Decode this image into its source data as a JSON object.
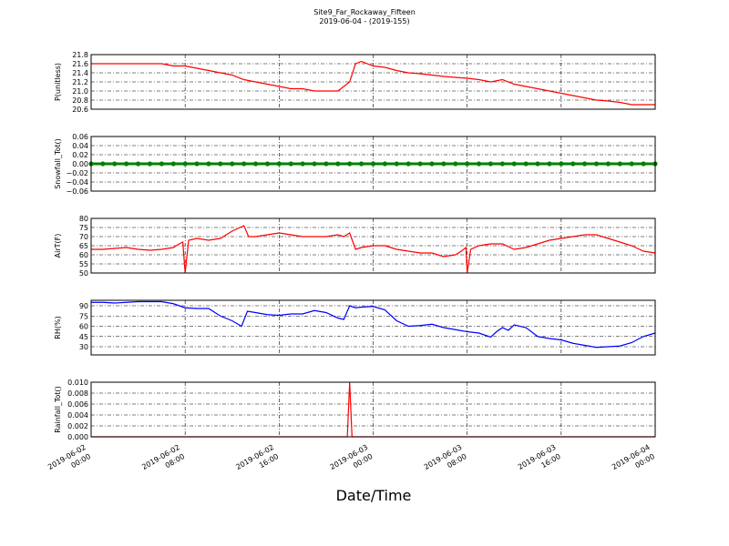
{
  "title": "Site9_Far_Rockaway_Fifteen",
  "subtitle": "2019-06-04 - (2019-155)",
  "xlabel": "Date/Time",
  "xlim": [
    "2019-06-02 00:00",
    "2019-06-04 00:00"
  ],
  "xticks": [
    {
      "value": "2019-06-02 00:00",
      "label": [
        "2019-06-02",
        "00:00"
      ]
    },
    {
      "value": "2019-06-02 08:00",
      "label": [
        "2019-06-02",
        "08:00"
      ]
    },
    {
      "value": "2019-06-02 16:00",
      "label": [
        "2019-06-02",
        "16:00"
      ]
    },
    {
      "value": "2019-06-03 00:00",
      "label": [
        "2019-06-03",
        "00:00"
      ]
    },
    {
      "value": "2019-06-03 08:00",
      "label": [
        "2019-06-03",
        "08:00"
      ]
    },
    {
      "value": "2019-06-03 16:00",
      "label": [
        "2019-06-03",
        "16:00"
      ]
    },
    {
      "value": "2019-06-04 00:00",
      "label": [
        "2019-06-04",
        "00:00"
      ]
    }
  ],
  "grid": true,
  "chart_data": [
    {
      "type": "line",
      "ylabel": "P(unitless)",
      "ylim": [
        20.6,
        21.8
      ],
      "yticks": [
        20.6,
        20.8,
        {
          "value": 21.0,
          "label": "21.0"
        },
        21.2,
        21.4,
        21.6,
        21.8
      ],
      "x": [
        "2019-06-02 00:00",
        "2019-06-02 01:00",
        "2019-06-02 02:00",
        "2019-06-02 03:00",
        "2019-06-02 04:00",
        "2019-06-02 05:00",
        "2019-06-02 06:00",
        "2019-06-02 07:00",
        "2019-06-02 08:00",
        "2019-06-02 09:00",
        "2019-06-02 10:00",
        "2019-06-02 11:00",
        "2019-06-02 12:00",
        "2019-06-02 13:00",
        "2019-06-02 14:00",
        "2019-06-02 15:00",
        "2019-06-02 16:00",
        "2019-06-02 17:00",
        "2019-06-02 18:00",
        "2019-06-02 19:00",
        "2019-06-02 20:00",
        "2019-06-02 21:00",
        "2019-06-02 22:00",
        "2019-06-02 22:30",
        "2019-06-02 23:00",
        "2019-06-03 00:00",
        "2019-06-03 01:00",
        "2019-06-03 02:00",
        "2019-06-03 03:00",
        "2019-06-03 04:00",
        "2019-06-03 05:00",
        "2019-06-03 06:00",
        "2019-06-03 07:00",
        "2019-06-03 08:00",
        "2019-06-03 09:00",
        "2019-06-03 10:00",
        "2019-06-03 11:00",
        "2019-06-03 12:00",
        "2019-06-03 13:00",
        "2019-06-03 14:00",
        "2019-06-03 15:00",
        "2019-06-03 16:00",
        "2019-06-03 17:00",
        "2019-06-03 18:00",
        "2019-06-03 19:00",
        "2019-06-03 20:00",
        "2019-06-03 21:00",
        "2019-06-03 22:00",
        "2019-06-03 23:00",
        "2019-06-04 00:00"
      ],
      "series": [
        {
          "color": "#ff0000",
          "values": [
            21.6,
            21.6,
            21.6,
            21.6,
            21.6,
            21.6,
            21.6,
            21.55,
            21.55,
            21.5,
            21.45,
            21.4,
            21.35,
            21.25,
            21.2,
            21.15,
            21.1,
            21.05,
            21.05,
            21.0,
            21.0,
            21.0,
            21.2,
            21.6,
            21.65,
            21.55,
            21.52,
            21.45,
            21.4,
            21.38,
            21.35,
            21.32,
            21.3,
            21.28,
            21.25,
            21.2,
            21.25,
            21.15,
            21.1,
            21.05,
            21.0,
            20.95,
            20.9,
            20.85,
            20.8,
            20.78,
            20.75,
            20.7,
            20.7,
            20.7
          ]
        }
      ]
    },
    {
      "type": "line",
      "ylabel": "Snowfall_Tot()",
      "ylim": [
        -0.06,
        0.06
      ],
      "marker": true,
      "yticks": [
        {
          "value": -0.06,
          "label": "−0.06"
        },
        {
          "value": -0.04,
          "label": "−0.04"
        },
        {
          "value": -0.02,
          "label": "−0.02"
        },
        {
          "value": 0,
          "label": "0.00"
        },
        0.02,
        0.04,
        0.06
      ],
      "x": [
        "2019-06-02 00:00",
        "2019-06-02 01:00",
        "2019-06-02 02:00",
        "2019-06-02 03:00",
        "2019-06-02 04:00",
        "2019-06-02 05:00",
        "2019-06-02 06:00",
        "2019-06-02 07:00",
        "2019-06-02 08:00",
        "2019-06-02 09:00",
        "2019-06-02 10:00",
        "2019-06-02 11:00",
        "2019-06-02 12:00",
        "2019-06-02 13:00",
        "2019-06-02 14:00",
        "2019-06-02 15:00",
        "2019-06-02 16:00",
        "2019-06-02 17:00",
        "2019-06-02 18:00",
        "2019-06-02 19:00",
        "2019-06-02 20:00",
        "2019-06-02 21:00",
        "2019-06-02 22:00",
        "2019-06-02 23:00",
        "2019-06-03 00:00",
        "2019-06-03 01:00",
        "2019-06-03 02:00",
        "2019-06-03 03:00",
        "2019-06-03 04:00",
        "2019-06-03 05:00",
        "2019-06-03 06:00",
        "2019-06-03 07:00",
        "2019-06-03 08:00",
        "2019-06-03 09:00",
        "2019-06-03 10:00",
        "2019-06-03 11:00",
        "2019-06-03 12:00",
        "2019-06-03 13:00",
        "2019-06-03 14:00",
        "2019-06-03 15:00",
        "2019-06-03 16:00",
        "2019-06-03 17:00",
        "2019-06-03 18:00",
        "2019-06-03 19:00",
        "2019-06-03 20:00",
        "2019-06-03 21:00",
        "2019-06-03 22:00",
        "2019-06-03 23:00",
        "2019-06-04 00:00"
      ],
      "series": [
        {
          "color": "#008000",
          "values": [
            0,
            0,
            0,
            0,
            0,
            0,
            0,
            0,
            0,
            0,
            0,
            0,
            0,
            0,
            0,
            0,
            0,
            0,
            0,
            0,
            0,
            0,
            0,
            0,
            0,
            0,
            0,
            0,
            0,
            0,
            0,
            0,
            0,
            0,
            0,
            0,
            0,
            0,
            0,
            0,
            0,
            0,
            0,
            0,
            0,
            0,
            0,
            0,
            0
          ]
        }
      ]
    },
    {
      "type": "line",
      "ylabel": "AirT(F)",
      "ylim": [
        50,
        80
      ],
      "yticks": [
        50,
        55,
        60,
        65,
        70,
        75,
        80
      ],
      "x": [
        "2019-06-02 00:00",
        "2019-06-02 01:00",
        "2019-06-02 02:00",
        "2019-06-02 03:00",
        "2019-06-02 04:00",
        "2019-06-02 05:00",
        "2019-06-02 06:00",
        "2019-06-02 07:00",
        "2019-06-02 07:30",
        "2019-06-02 07:48",
        "2019-06-02 08:00",
        "2019-06-02 08:18",
        "2019-06-02 09:00",
        "2019-06-02 10:00",
        "2019-06-02 11:00",
        "2019-06-02 12:00",
        "2019-06-02 12:30",
        "2019-06-02 13:00",
        "2019-06-02 13:24",
        "2019-06-02 14:00",
        "2019-06-02 15:00",
        "2019-06-02 16:00",
        "2019-06-02 17:00",
        "2019-06-02 18:00",
        "2019-06-02 19:00",
        "2019-06-02 20:00",
        "2019-06-02 21:00",
        "2019-06-02 21:30",
        "2019-06-02 22:00",
        "2019-06-02 22:30",
        "2019-06-02 23:00",
        "2019-06-03 00:00",
        "2019-06-03 01:00",
        "2019-06-03 02:00",
        "2019-06-03 03:00",
        "2019-06-03 04:00",
        "2019-06-03 05:00",
        "2019-06-03 06:00",
        "2019-06-03 07:00",
        "2019-06-03 07:30",
        "2019-06-03 07:54",
        "2019-06-03 08:00",
        "2019-06-03 08:18",
        "2019-06-03 09:00",
        "2019-06-03 10:00",
        "2019-06-03 11:00",
        "2019-06-03 12:00",
        "2019-06-03 13:00",
        "2019-06-03 14:00",
        "2019-06-03 15:00",
        "2019-06-03 16:00",
        "2019-06-03 17:00",
        "2019-06-03 18:00",
        "2019-06-03 19:00",
        "2019-06-03 20:00",
        "2019-06-03 21:00",
        "2019-06-03 22:00",
        "2019-06-03 23:00",
        "2019-06-04 00:00"
      ],
      "series": [
        {
          "color": "#ff0000",
          "values": [
            63,
            63,
            63.5,
            64,
            63,
            62.5,
            63,
            64,
            66,
            67,
            50,
            68,
            69,
            68,
            69,
            73,
            74.5,
            76,
            70,
            70,
            71,
            72,
            71,
            70,
            70,
            70,
            71,
            70,
            72,
            63,
            64,
            65,
            65,
            63,
            62,
            61,
            61,
            59,
            60,
            62,
            64,
            50,
            63,
            65,
            66,
            66,
            63,
            64,
            66,
            68,
            69,
            70,
            71,
            71,
            69,
            67,
            65,
            62,
            61
          ]
        }
      ]
    },
    {
      "type": "line",
      "ylabel": "RH(%)",
      "ylim": [
        18,
        98
      ],
      "yticks": [
        30,
        45,
        60,
        75,
        90
      ],
      "x": [
        "2019-06-02 00:00",
        "2019-06-02 01:00",
        "2019-06-02 02:00",
        "2019-06-02 03:00",
        "2019-06-02 04:00",
        "2019-06-02 05:00",
        "2019-06-02 06:00",
        "2019-06-02 07:00",
        "2019-06-02 08:00",
        "2019-06-02 09:00",
        "2019-06-02 10:00",
        "2019-06-02 11:00",
        "2019-06-02 12:00",
        "2019-06-02 12:48",
        "2019-06-02 13:18",
        "2019-06-02 14:00",
        "2019-06-02 15:00",
        "2019-06-02 16:00",
        "2019-06-02 17:00",
        "2019-06-02 18:00",
        "2019-06-02 19:00",
        "2019-06-02 20:00",
        "2019-06-02 21:00",
        "2019-06-02 21:30",
        "2019-06-02 22:00",
        "2019-06-02 22:30",
        "2019-06-02 23:00",
        "2019-06-03 00:00",
        "2019-06-03 01:00",
        "2019-06-03 02:00",
        "2019-06-03 03:00",
        "2019-06-03 04:00",
        "2019-06-03 05:00",
        "2019-06-03 06:00",
        "2019-06-03 07:00",
        "2019-06-03 08:00",
        "2019-06-03 09:00",
        "2019-06-03 10:00",
        "2019-06-03 10:30",
        "2019-06-03 11:00",
        "2019-06-03 11:30",
        "2019-06-03 12:00",
        "2019-06-03 13:00",
        "2019-06-03 14:00",
        "2019-06-03 15:00",
        "2019-06-03 16:00",
        "2019-06-03 17:00",
        "2019-06-03 18:00",
        "2019-06-03 19:00",
        "2019-06-03 20:00",
        "2019-06-03 21:00",
        "2019-06-03 22:00",
        "2019-06-03 23:00",
        "2019-06-04 00:00"
      ],
      "series": [
        {
          "color": "#0000ff",
          "values": [
            95,
            95,
            94,
            95,
            96,
            96,
            96,
            93,
            87,
            86,
            86,
            75,
            68,
            60,
            82,
            80,
            77,
            76,
            78,
            78,
            83,
            80,
            72,
            70,
            90,
            87,
            88,
            89,
            84,
            68,
            60,
            61,
            63,
            58,
            55,
            52,
            50,
            44,
            52,
            58,
            54,
            62,
            58,
            45,
            42,
            40,
            35,
            32,
            29,
            30,
            31,
            36,
            45,
            50
          ]
        }
      ]
    },
    {
      "type": "line",
      "ylabel": "Rainfall_Tot()",
      "ylim": [
        0,
        0.01
      ],
      "yticks": [
        {
          "value": 0,
          "label": "0.000"
        },
        0.002,
        0.004,
        0.006,
        0.008,
        {
          "value": 0.01,
          "label": "0.010"
        }
      ],
      "x": [
        "2019-06-02 00:00",
        "2019-06-02 01:00",
        "2019-06-02 02:00",
        "2019-06-02 03:00",
        "2019-06-02 04:00",
        "2019-06-02 05:00",
        "2019-06-02 06:00",
        "2019-06-02 07:00",
        "2019-06-02 08:00",
        "2019-06-02 09:00",
        "2019-06-02 10:00",
        "2019-06-02 11:00",
        "2019-06-02 12:00",
        "2019-06-02 13:00",
        "2019-06-02 14:00",
        "2019-06-02 15:00",
        "2019-06-02 16:00",
        "2019-06-02 17:00",
        "2019-06-02 18:00",
        "2019-06-02 19:00",
        "2019-06-02 20:00",
        "2019-06-02 21:00",
        "2019-06-02 21:48",
        "2019-06-02 22:00",
        "2019-06-02 22:12",
        "2019-06-02 23:00",
        "2019-06-03 00:00",
        "2019-06-03 01:00",
        "2019-06-03 02:00",
        "2019-06-03 03:00",
        "2019-06-03 04:00",
        "2019-06-03 05:00",
        "2019-06-03 06:00",
        "2019-06-03 07:00",
        "2019-06-03 08:00",
        "2019-06-03 09:00",
        "2019-06-03 10:00",
        "2019-06-03 11:00",
        "2019-06-03 12:00",
        "2019-06-03 13:00",
        "2019-06-03 14:00",
        "2019-06-03 15:00",
        "2019-06-03 16:00",
        "2019-06-03 17:00",
        "2019-06-03 18:00",
        "2019-06-03 19:00",
        "2019-06-03 20:00",
        "2019-06-03 21:00",
        "2019-06-03 22:00",
        "2019-06-03 23:00",
        "2019-06-04 00:00"
      ],
      "series": [
        {
          "color": "#ff0000",
          "values": [
            0,
            0,
            0,
            0,
            0,
            0,
            0,
            0,
            0,
            0,
            0,
            0,
            0,
            0,
            0,
            0,
            0,
            0,
            0,
            0,
            0,
            0,
            0,
            0.01,
            0,
            0,
            0,
            0,
            0,
            0,
            0,
            0,
            0,
            0,
            0,
            0,
            0,
            0,
            0,
            0,
            0,
            0,
            0,
            0,
            0,
            0,
            0,
            0,
            0,
            0,
            0
          ]
        }
      ]
    }
  ]
}
